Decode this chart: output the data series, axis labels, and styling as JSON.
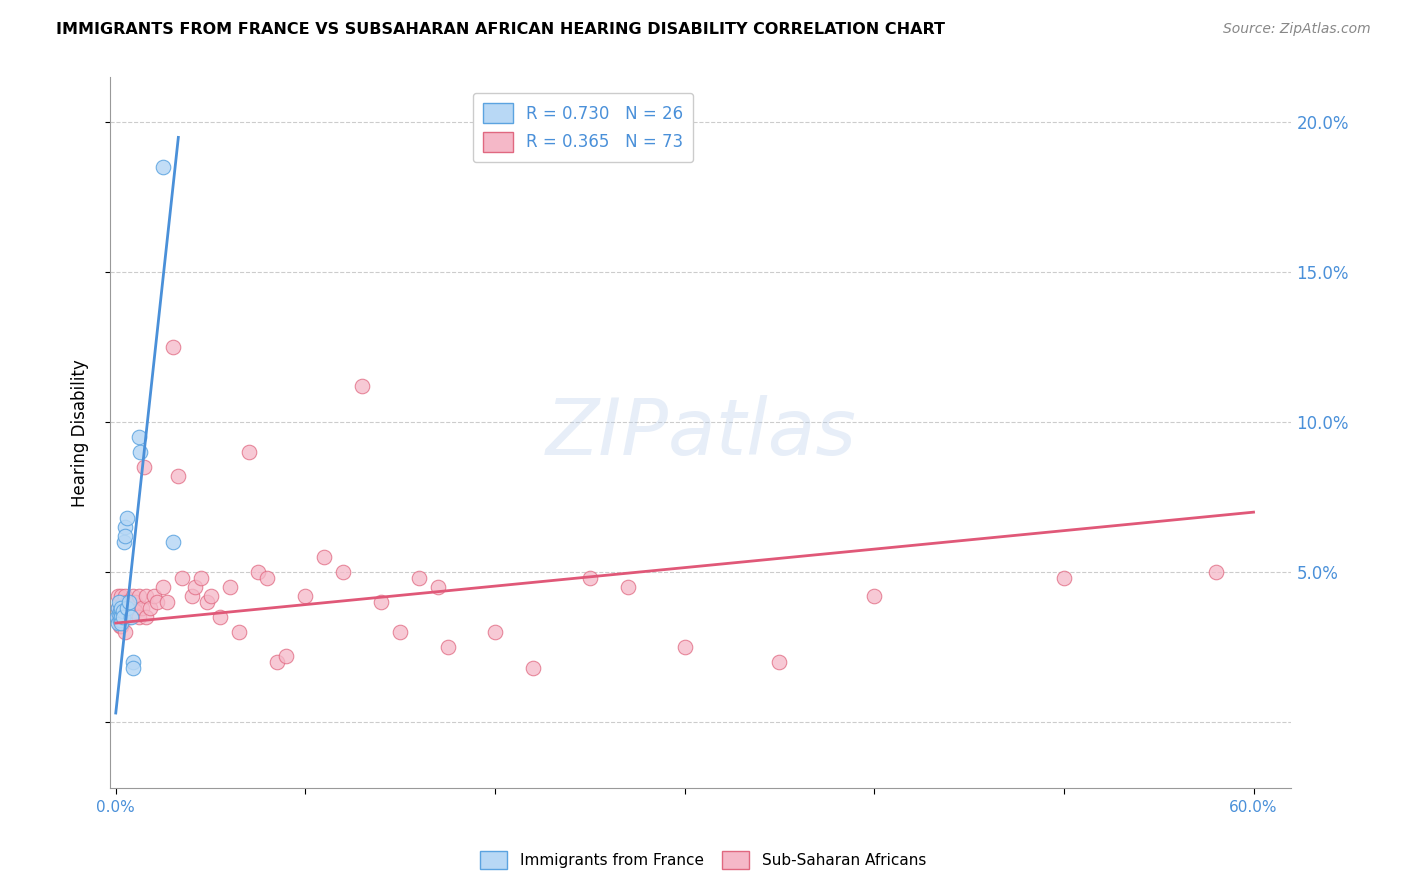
{
  "title": "IMMIGRANTS FROM FRANCE VS SUBSAHARAN AFRICAN HEARING DISABILITY CORRELATION CHART",
  "source": "Source: ZipAtlas.com",
  "ylabel": "Hearing Disability",
  "yticks": [
    0.0,
    0.05,
    0.1,
    0.15,
    0.2
  ],
  "xlim": [
    -0.003,
    0.62
  ],
  "ylim": [
    -0.022,
    0.215
  ],
  "france_R": 0.73,
  "france_N": 26,
  "subsaharan_R": 0.365,
  "subsaharan_N": 73,
  "france_color": "#b8d8f5",
  "france_edge_color": "#5ba3e0",
  "france_line_color": "#4a90d9",
  "subsaharan_color": "#f5b8c8",
  "subsaharan_edge_color": "#e06880",
  "subsaharan_line_color": "#e05878",
  "watermark": "ZIPatlas",
  "france_points": [
    [
      0.0005,
      0.035
    ],
    [
      0.001,
      0.038
    ],
    [
      0.001,
      0.033
    ],
    [
      0.0015,
      0.04
    ],
    [
      0.0015,
      0.036
    ],
    [
      0.002,
      0.037
    ],
    [
      0.002,
      0.034
    ],
    [
      0.0025,
      0.036
    ],
    [
      0.003,
      0.038
    ],
    [
      0.003,
      0.035
    ],
    [
      0.003,
      0.033
    ],
    [
      0.004,
      0.037
    ],
    [
      0.004,
      0.035
    ],
    [
      0.0045,
      0.06
    ],
    [
      0.005,
      0.065
    ],
    [
      0.005,
      0.062
    ],
    [
      0.006,
      0.068
    ],
    [
      0.006,
      0.038
    ],
    [
      0.007,
      0.04
    ],
    [
      0.008,
      0.035
    ],
    [
      0.009,
      0.02
    ],
    [
      0.009,
      0.018
    ],
    [
      0.012,
      0.095
    ],
    [
      0.013,
      0.09
    ],
    [
      0.025,
      0.185
    ],
    [
      0.03,
      0.06
    ]
  ],
  "subsaharan_points": [
    [
      0.001,
      0.042
    ],
    [
      0.001,
      0.038
    ],
    [
      0.001,
      0.035
    ],
    [
      0.002,
      0.04
    ],
    [
      0.002,
      0.038
    ],
    [
      0.002,
      0.035
    ],
    [
      0.002,
      0.032
    ],
    [
      0.003,
      0.042
    ],
    [
      0.003,
      0.038
    ],
    [
      0.003,
      0.035
    ],
    [
      0.003,
      0.032
    ],
    [
      0.004,
      0.04
    ],
    [
      0.004,
      0.037
    ],
    [
      0.004,
      0.035
    ],
    [
      0.005,
      0.042
    ],
    [
      0.005,
      0.038
    ],
    [
      0.005,
      0.035
    ],
    [
      0.005,
      0.03
    ],
    [
      0.006,
      0.04
    ],
    [
      0.006,
      0.037
    ],
    [
      0.006,
      0.035
    ],
    [
      0.007,
      0.038
    ],
    [
      0.007,
      0.035
    ],
    [
      0.008,
      0.04
    ],
    [
      0.008,
      0.037
    ],
    [
      0.009,
      0.042
    ],
    [
      0.009,
      0.038
    ],
    [
      0.01,
      0.04
    ],
    [
      0.01,
      0.037
    ],
    [
      0.012,
      0.042
    ],
    [
      0.012,
      0.035
    ],
    [
      0.014,
      0.038
    ],
    [
      0.015,
      0.085
    ],
    [
      0.016,
      0.042
    ],
    [
      0.016,
      0.035
    ],
    [
      0.018,
      0.038
    ],
    [
      0.02,
      0.042
    ],
    [
      0.022,
      0.04
    ],
    [
      0.025,
      0.045
    ],
    [
      0.027,
      0.04
    ],
    [
      0.03,
      0.125
    ],
    [
      0.033,
      0.082
    ],
    [
      0.035,
      0.048
    ],
    [
      0.04,
      0.042
    ],
    [
      0.042,
      0.045
    ],
    [
      0.045,
      0.048
    ],
    [
      0.048,
      0.04
    ],
    [
      0.05,
      0.042
    ],
    [
      0.055,
      0.035
    ],
    [
      0.06,
      0.045
    ],
    [
      0.065,
      0.03
    ],
    [
      0.07,
      0.09
    ],
    [
      0.075,
      0.05
    ],
    [
      0.08,
      0.048
    ],
    [
      0.085,
      0.02
    ],
    [
      0.09,
      0.022
    ],
    [
      0.1,
      0.042
    ],
    [
      0.11,
      0.055
    ],
    [
      0.12,
      0.05
    ],
    [
      0.13,
      0.112
    ],
    [
      0.14,
      0.04
    ],
    [
      0.15,
      0.03
    ],
    [
      0.16,
      0.048
    ],
    [
      0.17,
      0.045
    ],
    [
      0.175,
      0.025
    ],
    [
      0.2,
      0.03
    ],
    [
      0.22,
      0.018
    ],
    [
      0.25,
      0.048
    ],
    [
      0.27,
      0.045
    ],
    [
      0.3,
      0.025
    ],
    [
      0.35,
      0.02
    ],
    [
      0.4,
      0.042
    ],
    [
      0.5,
      0.048
    ],
    [
      0.58,
      0.05
    ]
  ],
  "france_line_x": [
    0.0,
    0.033
  ],
  "france_line_y_start": 0.003,
  "france_line_y_end": 0.195,
  "sub_line_x": [
    0.0,
    0.6
  ],
  "sub_line_y_start": 0.033,
  "sub_line_y_end": 0.07
}
